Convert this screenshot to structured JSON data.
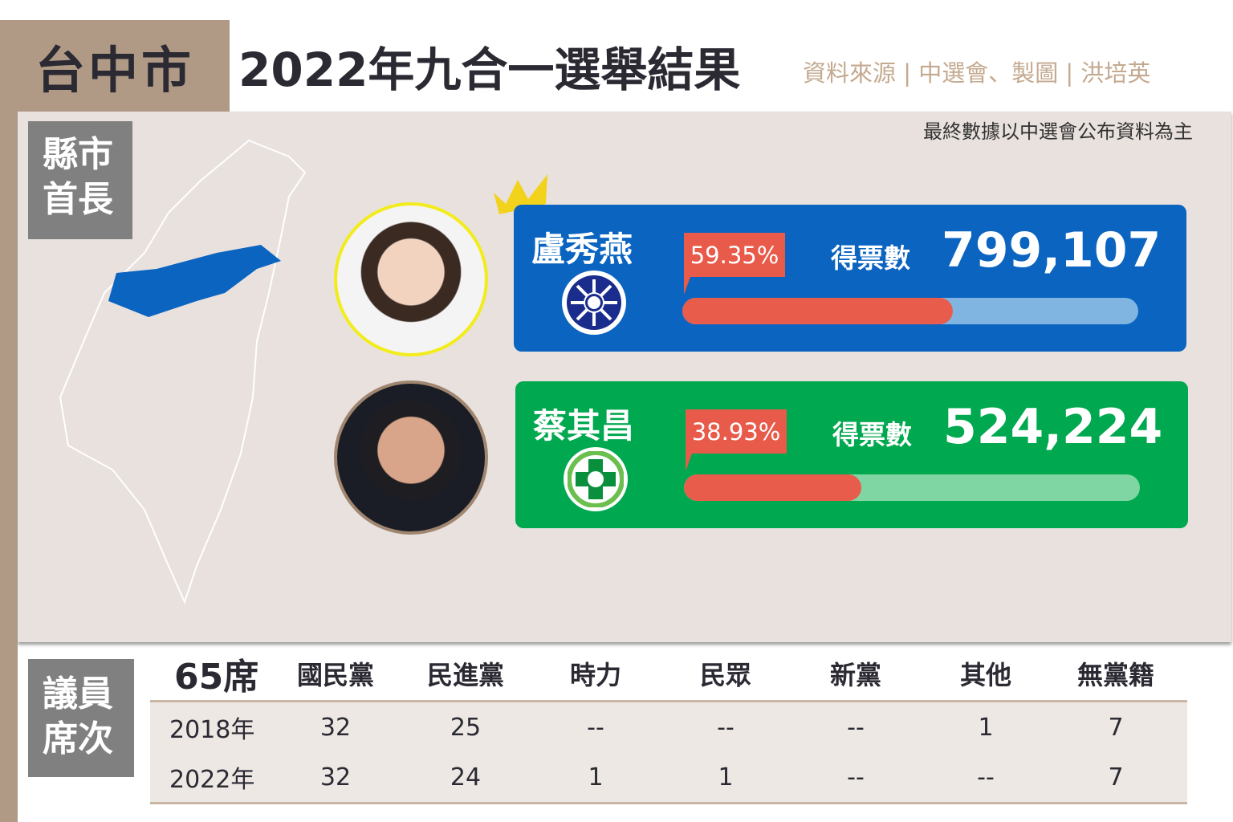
{
  "header": {
    "city": "台中市",
    "title": "2022年九合一選舉結果",
    "source": "資料來源 | 中選會、製圖 | 洪培英",
    "note": "最終數據以中選會公布資料為主"
  },
  "mayor": {
    "section_label": "縣市首長",
    "highlight_color": "#0a64c0",
    "candidates": [
      {
        "name": "盧秀燕",
        "party_icon": "kmt-emblem-icon",
        "percent": "59.35%",
        "percent_value": 59.35,
        "votes_label": "得票數",
        "votes": "799,107",
        "card_color": "#0a64c0",
        "winner": true
      },
      {
        "name": "蔡其昌",
        "party_icon": "dpp-emblem-icon",
        "percent": "38.93%",
        "percent_value": 38.93,
        "votes_label": "得票數",
        "votes": "524,224",
        "card_color": "#00a84f",
        "winner": false
      }
    ]
  },
  "council": {
    "section_label": "議員席次",
    "total": "65席",
    "columns": [
      "國民黨",
      "民進黨",
      "時力",
      "民眾",
      "新黨",
      "其他",
      "無黨籍"
    ],
    "rows": [
      {
        "year": "2018年",
        "values": [
          "32",
          "25",
          "--",
          "--",
          "--",
          "1",
          "7"
        ]
      },
      {
        "year": "2022年",
        "values": [
          "32",
          "24",
          "1",
          "1",
          "--",
          "--",
          "7"
        ]
      }
    ]
  }
}
